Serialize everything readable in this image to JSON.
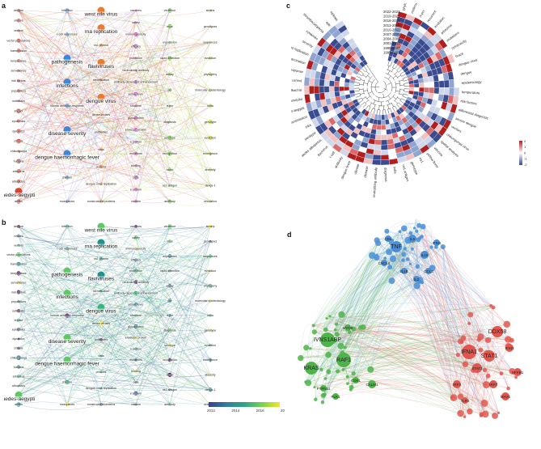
{
  "panel_labels": {
    "a": "a",
    "b": "b",
    "c": "c",
    "d": "d"
  },
  "network_a": {
    "columns": [
      [
        "dengue",
        "viruses",
        "vectors",
        "vector populations",
        "transmission",
        "temperature",
        "surveillance",
        "risk factors",
        "populations",
        "outbreaks",
        "impact",
        "epidemics",
        "dynamics",
        "climate",
        "chikungunya",
        "humans",
        "arbovirus",
        "albopictus",
        "aedes-aegypti",
        "aedes"
      ],
      [
        "infection",
        "t-cell responses",
        "pathogenesis",
        "infections",
        "human antibody-response",
        "disease severity",
        "dengue haemorrhagic fever",
        "children",
        "mosquitoes"
      ],
      [
        "west nile virus",
        "rna replication",
        "ns1 protein",
        "flaviviruses",
        "identification",
        "dengue virus",
        "dense-viruses",
        "antibodies",
        "virus",
        "proteins",
        "dengue-virus replication",
        "nonstructural proteins"
      ],
      [
        "vaccines",
        "safety",
        "immunogenicity",
        "efficacy",
        "protection",
        "neutralizing antibody",
        "antibody-dependent enhancement",
        "yellow fever",
        "structure",
        "glycoprotein",
        "envelope protein",
        "e protein",
        "mutations",
        "binding",
        "cells",
        "e protein",
        "vaccine"
      ],
      [
        "virulence",
        "mice",
        "expression",
        "rapid detection",
        "assay",
        "pcr",
        "rt-pcr",
        "diagnosis",
        "serotype",
        "recognition",
        "blood",
        "ns1 antigen",
        "antibody"
      ],
      [
        "strains",
        "genotypes",
        "sequences",
        "evolution",
        "phylogeny",
        "molecular epidemiology",
        "india",
        "genotype",
        "evolution",
        "emergence",
        "diversity",
        "dengv-1",
        "circulation"
      ]
    ],
    "big_nodes": [
      "infections",
      "dengue haemorrhagic fever",
      "dengue virus",
      "flaviviruses",
      "aedes-aegypti",
      "pathogenesis",
      "rna replication",
      "disease severity",
      "west nile virus"
    ]
  },
  "network_b": {
    "legend_ticks": [
      "2012",
      "2014",
      "2016",
      "20"
    ]
  },
  "circos_c": {
    "legend_labels": [
      "2022-2023",
      "2019-2021",
      "2016-2018",
      "2013-2015",
      "2010-2012",
      "2007-2009",
      "2004-2006",
      "2001-2003",
      "1998-2000",
      "1995-1997"
    ],
    "scale_ticks": [
      "2",
      "1",
      "0",
      "-1",
      "-2"
    ],
    "outer_labels": [
      "phylogeny",
      "molecular epidemiology",
      "rt-pcr",
      "recurrent",
      "evolution",
      "arbovirus",
      "mutations",
      "cytotoxicity",
      "brazil",
      "dengue virus",
      "dengue",
      "epidemiology",
      "temperature",
      "risk factors",
      "differential diagnosis",
      "severe dengue",
      "vectors",
      "chikungunya virus",
      "spatial analysis",
      "vaccine",
      "yellow fever",
      "ns1",
      "genotype",
      "ns1 antigen",
      "india",
      "diagnosis",
      "neutralizing antibody",
      "disease",
      "climate",
      "dengue fever",
      "antibody",
      "t cell",
      "flavivirus",
      "aedes albopictus",
      "serotype",
      "zika",
      "transmission",
      "aedes aegypti",
      "mosquito",
      "wolbachia",
      "vector control",
      "immune response",
      "vaccination",
      "virus replication",
      "severity",
      "cytokines",
      "thrombocytopenia",
      "ade",
      "epitope"
    ]
  },
  "network_d": {
    "nodes": [
      "TNF",
      "IL6",
      "IL10",
      "CXCL8",
      "CCL2",
      "IL1B",
      "IFNG",
      "CD4",
      "IL2",
      "IVNS1ABP",
      "RAF1",
      "KRAS",
      "CALM1",
      "MYO5",
      "PTPN11",
      "CDK1",
      "PLK1",
      "DDX58",
      "IFNA1",
      "STAT1",
      "STAT2",
      "IRF3",
      "IRF7",
      "MAVS",
      "IFIH1",
      "TLR3",
      "NFKB1"
    ]
  }
}
